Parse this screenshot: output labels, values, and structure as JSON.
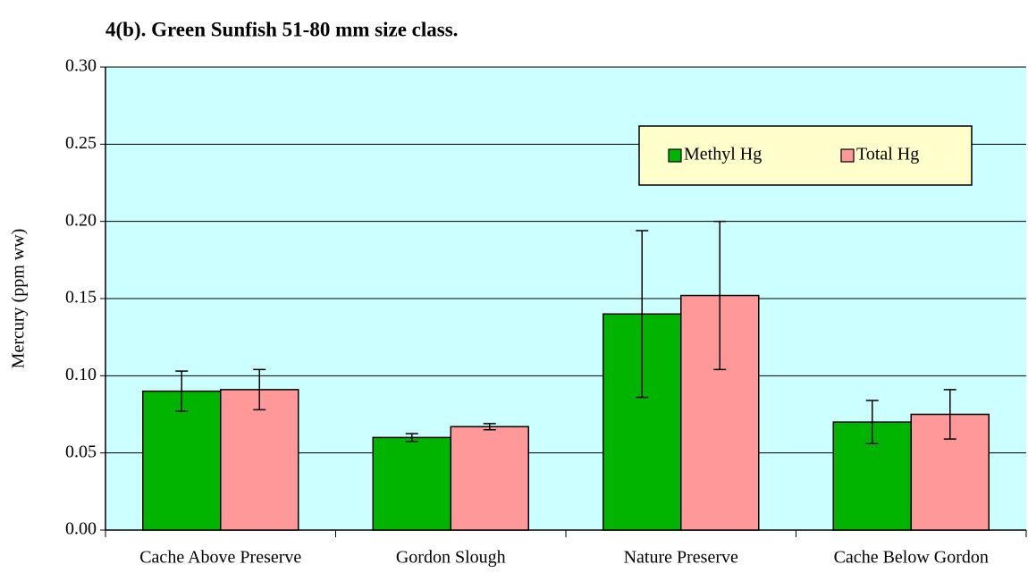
{
  "chart_data": {
    "type": "bar",
    "title": "4(b).  Green Sunfish 51-80 mm size class.",
    "y_label": "Mercury (ppm ww)",
    "categories": [
      "Cache Above Preserve",
      "Gordon Slough",
      "Nature Preserve",
      "Cache Below Gordon"
    ],
    "series": [
      {
        "name": "Methyl Hg",
        "color": "#00b400",
        "values": [
          0.09,
          0.06,
          0.14,
          0.07
        ],
        "errors": [
          0.013,
          0.0025,
          0.054,
          0.014
        ]
      },
      {
        "name": "Total Hg",
        "color": "#ff9999",
        "values": [
          0.091,
          0.067,
          0.152,
          0.075
        ],
        "errors": [
          0.013,
          0.002,
          0.048,
          0.016
        ]
      }
    ],
    "ylim": [
      0,
      0.3
    ],
    "yticks": [
      {
        "value": 0,
        "label": "0.00"
      },
      0.05,
      {
        "value": 0.1,
        "label": "0.10"
      },
      0.15,
      {
        "value": 0.2,
        "label": "0.20"
      },
      0.25,
      {
        "value": 0.3,
        "label": "0.30"
      }
    ],
    "grid": true,
    "background": "#ccffff",
    "legend": "top-right"
  }
}
